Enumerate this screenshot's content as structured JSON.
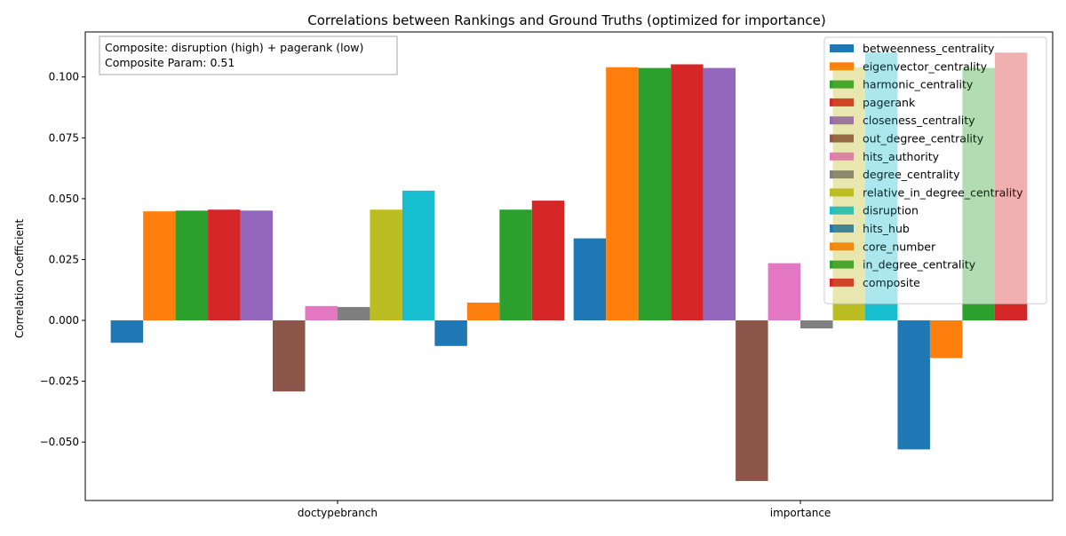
{
  "chart_data": {
    "type": "bar",
    "title": "Correlations between Rankings and Ground Truths (optimized for importance)",
    "xlabel": "",
    "ylabel": "Correlation Coefficient",
    "categories": [
      "doctypebranch",
      "importance"
    ],
    "ylim": [
      -0.074,
      0.1185
    ],
    "yticks": [
      -0.05,
      -0.025,
      0.0,
      0.025,
      0.05,
      0.075,
      0.1
    ],
    "ytick_labels": [
      "−0.050",
      "−0.025",
      "0.000",
      "0.025",
      "0.050",
      "0.075",
      "0.100"
    ],
    "grid": false,
    "legend_position": "top-right",
    "annotation": {
      "lines": [
        "Composite: disruption (high) + pagerank (low)",
        "Composite Param: 0.51"
      ],
      "position": "top-left"
    },
    "series": [
      {
        "name": "betweenness_centrality",
        "color": "#1f77b4",
        "values": [
          -0.0092,
          0.0337
        ]
      },
      {
        "name": "eigenvector_centrality",
        "color": "#ff7f0e",
        "values": [
          0.0448,
          0.104
        ]
      },
      {
        "name": "harmonic_centrality",
        "color": "#2ca02c",
        "values": [
          0.0451,
          0.1037
        ]
      },
      {
        "name": "pagerank",
        "color": "#d62728",
        "values": [
          0.0455,
          0.1052
        ]
      },
      {
        "name": "closeness_centrality",
        "color": "#9467bd",
        "values": [
          0.0451,
          0.1037
        ]
      },
      {
        "name": "out_degree_centrality",
        "color": "#8c564b",
        "values": [
          -0.0292,
          -0.066
        ]
      },
      {
        "name": "hits_authority",
        "color": "#e377c2",
        "values": [
          0.0059,
          0.0235
        ]
      },
      {
        "name": "degree_centrality",
        "color": "#7f7f7f",
        "values": [
          0.0055,
          -0.0033
        ]
      },
      {
        "name": "relative_in_degree_centrality",
        "color": "#bcbd22",
        "values": [
          0.0455,
          0.104
        ]
      },
      {
        "name": "disruption",
        "color": "#17becf",
        "values": [
          0.0533,
          0.11
        ]
      },
      {
        "name": "hits_hub",
        "color": "#1f77b4",
        "values": [
          -0.0105,
          -0.053
        ]
      },
      {
        "name": "core_number",
        "color": "#ff7f0e",
        "values": [
          0.0073,
          -0.0155
        ]
      },
      {
        "name": "in_degree_centrality",
        "color": "#2ca02c",
        "values": [
          0.0455,
          0.1037
        ]
      },
      {
        "name": "composite",
        "color": "#d62728",
        "values": [
          0.0492,
          0.11
        ]
      }
    ]
  }
}
